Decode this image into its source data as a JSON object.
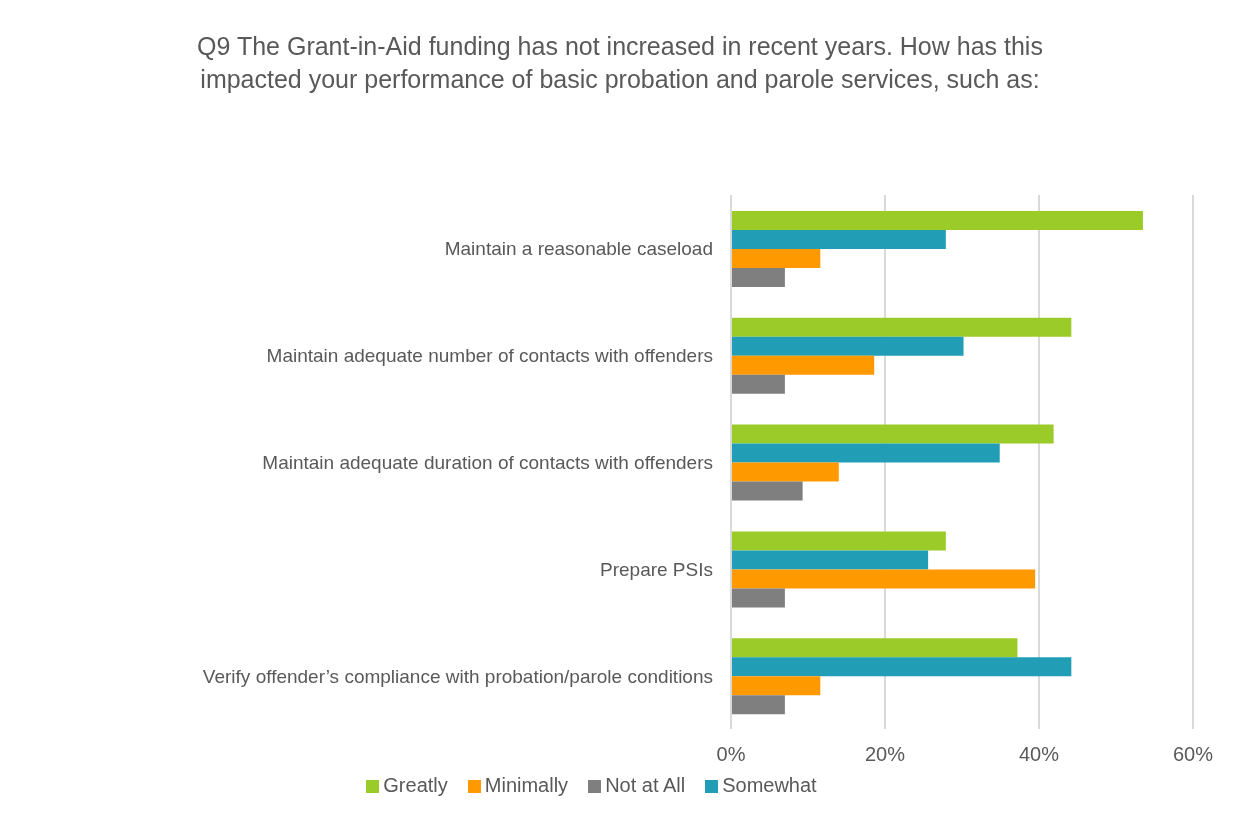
{
  "chart_data": {
    "type": "bar",
    "orientation": "horizontal",
    "title": "Q9 The Grant-in-Aid funding has not increased in recent years. How has this impacted your performance of basic probation and parole services, such as:",
    "categories": [
      "Maintain a reasonable caseload",
      "Maintain adequate number of contacts with offenders",
      "Maintain adequate duration of contacts with offenders",
      "Prepare PSIs",
      "Verify offender’s compliance with probation/parole conditions"
    ],
    "series": [
      {
        "name": "Greatly",
        "color": "#9bcb28",
        "values": [
          53.5,
          44.2,
          41.9,
          27.9,
          37.2
        ]
      },
      {
        "name": "Somewhat",
        "color": "#219eb5",
        "values": [
          27.9,
          30.2,
          34.9,
          25.6,
          44.2
        ]
      },
      {
        "name": "Minimally",
        "color": "#ff9900",
        "values": [
          11.6,
          18.6,
          14.0,
          39.5,
          11.6
        ]
      },
      {
        "name": "Not at All",
        "color": "#7f7f7f",
        "values": [
          7.0,
          7.0,
          9.3,
          7.0,
          7.0
        ]
      }
    ],
    "xlim": [
      0,
      60
    ],
    "xticks": [
      {
        "value": 0,
        "label": "0%"
      },
      {
        "value": 20,
        "label": "20%"
      },
      {
        "value": 40,
        "label": "40%"
      },
      {
        "value": 60,
        "label": "60%"
      }
    ],
    "grid": "x",
    "legend": "bottom"
  }
}
